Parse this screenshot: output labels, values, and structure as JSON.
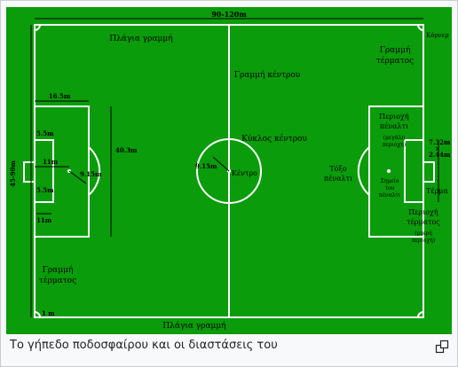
{
  "colors": {
    "grass": "#0a9c0a",
    "lines": "#ffffff",
    "text": "#000000"
  },
  "labels": {
    "width_dim": "90-120m",
    "height_dim": "45-90m",
    "corner": "Κόρνερ",
    "touchline_top": "Πλάγια γραμμή",
    "touchline_bottom": "Πλάγια γραμμή",
    "halfway": "Γραμμή κέντρου",
    "center_circle": "Κύκλος κέντρου",
    "center_mark": "Κέντρο",
    "goal_line_right_1": "Γραμμή",
    "goal_line_right_2": "τέρματος",
    "goal_line_left_1": "Γραμμή",
    "goal_line_left_2": "τέρματος",
    "penalty_area_1": "Περιοχή",
    "penalty_area_2": "πέναλτι",
    "penalty_area_small_1": "(μεγάλη",
    "penalty_area_small_2": "περιοχή)",
    "arc_1": "Τόξο",
    "arc_2": "πέναλτι",
    "penalty_mark_1": "Σημείο",
    "penalty_mark_2": "του",
    "penalty_mark_3": "πέναλτι",
    "goal": "Τέρμα",
    "goal_area_1": "Περιοχή",
    "goal_area_2": "τέρματος",
    "goal_area_small_1": "(μικρή",
    "goal_area_small_2": "περιοχή)",
    "d_16_5": "16.5m",
    "d_5_5_top": "5.5m",
    "d_5_5_bottom": "5.5m",
    "d_11_spot": "11m",
    "d_11_lower": "11m",
    "d_9_15_left": "9.15m",
    "d_9_15_center": "9.15m",
    "d_40_3": "40.3m",
    "d_7_32": "7.32m",
    "d_x": "×",
    "d_2_44": "2.44m",
    "d_1m": "1 m"
  },
  "caption": "Το γήπεδο ποδοσφαίρου και οι διαστάσεις του",
  "icons": {
    "magnify": "magnify-icon"
  }
}
